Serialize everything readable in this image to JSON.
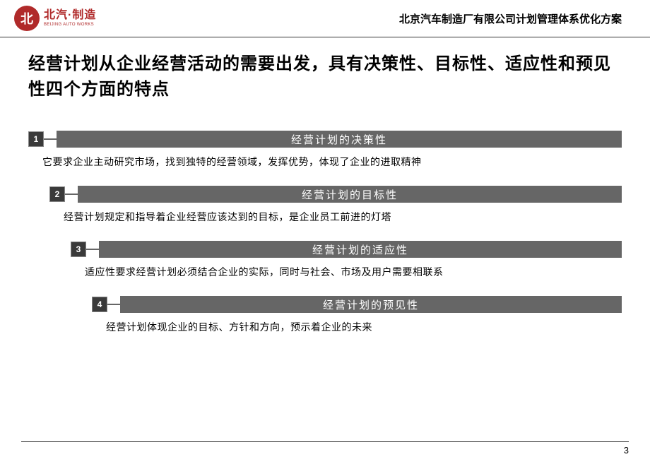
{
  "header": {
    "logo_symbol": "北",
    "logo_cn": "北汽·制造",
    "logo_en": "BEIJING AUTO WORKS",
    "title": "北京汽车制造厂有限公司计划管理体系优化方案"
  },
  "main_title": "经营计划从企业经营活动的需要出发，具有决策性、目标性、适应性和预见性四个方面的特点",
  "items": [
    {
      "num": "1",
      "title": "经营计划的决策性",
      "desc": "它要求企业主动研究市场，找到独特的经营领域，发挥优势，体现了企业的进取精神"
    },
    {
      "num": "2",
      "title": "经营计划的目标性",
      "desc": "经营计划规定和指导着企业经营应该达到的目标，是企业员工前进的灯塔"
    },
    {
      "num": "3",
      "title": "经营计划的适应性",
      "desc": "适应性要求经营计划必须结合企业的实际，同时与社会、市场及用户需要相联系"
    },
    {
      "num": "4",
      "title": "经营计划的预见性",
      "desc": "经营计划体现企业的目标、方针和方向，预示着企业的未来"
    }
  ],
  "page_number": "3",
  "colors": {
    "logo_red": "#b02a2a",
    "bar_bg": "#666666",
    "num_bg": "#3a3a3a",
    "text": "#000000",
    "divider": "#333333"
  }
}
